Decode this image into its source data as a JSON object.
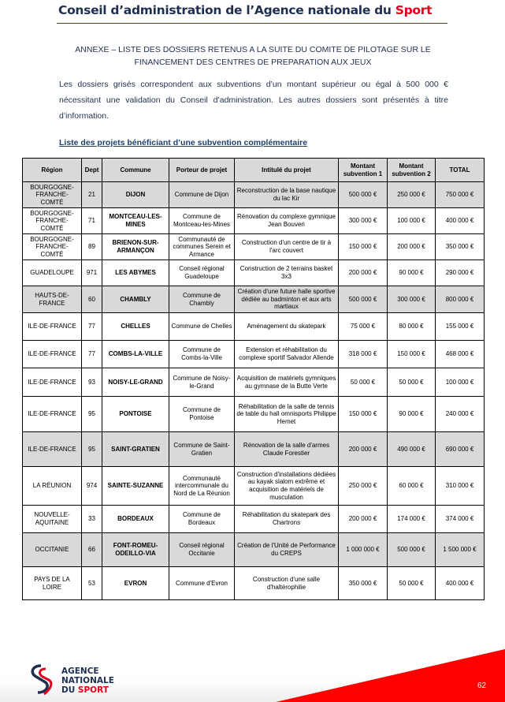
{
  "header": {
    "title_prefix": "Conseil d’administration de l’Agence nationale du ",
    "title_highlight": "Sport"
  },
  "annex_title": "ANNEXE – LISTE DES DOSSIERS RETENUS A LA SUITE DU COMITE DE PILOTAGE SUR LE FINANCEMENT DES CENTRES DE PREPARATION AUX JEUX",
  "intro": "Les dossiers grisés correspondent aux subventions d’un montant supérieur ou égal à 500 000 € nécessitant une validation du Conseil d’administration. Les autres dossiers sont présentés à titre d’information.",
  "section_title": "Liste des projets bénéficiant d’une subvention complémentaire",
  "table": {
    "columns": [
      "Région",
      "Dept",
      "Commune",
      "Porteur de projet",
      "Intitulé du projet",
      "Montant subvention 1",
      "Montant subvention 2",
      "TOTAL"
    ],
    "rows": [
      {
        "region": "BOURGOGNE-FRANCHE-COMTÉ",
        "dept": "21",
        "commune": "DIJON",
        "porteur": "Commune de Dijon",
        "intitule": "Reconstruction de la base nautique du lac Kir",
        "m1": "500 000 €",
        "m2": "250 000 €",
        "total": "750 000 €",
        "grey": true
      },
      {
        "region": "BOURGOGNE-FRANCHE-COMTÉ",
        "dept": "71",
        "commune": "MONTCEAU-LES-MINES",
        "porteur": "Commune de Montceau-les-Mines",
        "intitule": "Rénovation du complexe gymnique Jean Bouveri",
        "m1": "300 000 €",
        "m2": "100 000 €",
        "total": "400 000 €",
        "grey": false
      },
      {
        "region": "BOURGOGNE-FRANCHE-COMTÉ",
        "dept": "89",
        "commune": "BRIENON-SUR-ARMANÇON",
        "porteur": "Communauté de communes Serein et Armance",
        "intitule": "Construction d'un centre de tir à l'arc couvert",
        "m1": "150 000 €",
        "m2": "200 000 €",
        "total": "350 000 €",
        "grey": false
      },
      {
        "region": "GUADELOUPE",
        "dept": "971",
        "commune": "LES ABYMES",
        "porteur": "Conseil régional Guadeloupe",
        "intitule": "Construction de 2 terrains basket 3x3",
        "m1": "200 000 €",
        "m2": "90 000 €",
        "total": "290 000 €",
        "grey": false
      },
      {
        "region": "HAUTS-DE-FRANCE",
        "dept": "60",
        "commune": "CHAMBLY",
        "porteur": "Commune de Chambly",
        "intitule": "Création d'une future halle sportive dédiée au badminton et aux arts martiaux",
        "m1": "500 000 €",
        "m2": "300 000 €",
        "total": "800 000 €",
        "grey": true
      },
      {
        "region": "ILE-DE-FRANCE",
        "dept": "77",
        "commune": "CHELLES",
        "porteur": "Commune de Chelles",
        "intitule": "Aménagement du skatepark",
        "m1": "75 000 €",
        "m2": "80 000 €",
        "total": "155 000 €",
        "grey": false
      },
      {
        "region": "ILE-DE-FRANCE",
        "dept": "77",
        "commune": "COMBS-LA-VILLE",
        "porteur": "Commune de Combs-la-Ville",
        "intitule": "Extension et réhabilitation du complexe sportif Salvador Allende",
        "m1": "318 000 €",
        "m2": "150 000 €",
        "total": "468 000 €",
        "grey": false
      },
      {
        "region": "ILE-DE-FRANCE",
        "dept": "93",
        "commune": "NOISY-LE-GRAND",
        "porteur": "Commune de Noisy-le-Grand",
        "intitule": "Acquisition de matériels gymniques au gymnase de la Butte Verte",
        "m1": "50 000 €",
        "m2": "50 000 €",
        "total": "100 000 €",
        "grey": false
      },
      {
        "region": "ILE-DE-FRANCE",
        "dept": "95",
        "commune": "PONTOISE",
        "porteur": "Commune de Pontoise",
        "intitule": "Réhabilitation de la salle de tennis de table du hall omnisports Philippe Hemet",
        "m1": "150 000 €",
        "m2": "90 000 €",
        "total": "240 000 €",
        "grey": false
      },
      {
        "region": "ILE-DE-FRANCE",
        "dept": "95",
        "commune": "SAINT-GRATIEN",
        "porteur": "Commune de Saint-Gratien",
        "intitule": "Rénovation de la salle d'armes Claude Forestier",
        "m1": "200 000 €",
        "m2": "490 000 €",
        "total": "690 000 €",
        "grey": true
      },
      {
        "region": "LA RÉUNION",
        "dept": "974",
        "commune": "SAINTE-SUZANNE",
        "porteur": "Communauté intercommunale du Nord de La Réunion",
        "intitule": "Construction d'installations dédiées au kayak slalom extrême et acquisition de matériels de musculation",
        "m1": "250 000 €",
        "m2": "60 000 €",
        "total": "310 000 €",
        "grey": false
      },
      {
        "region": "NOUVELLE-AQUITAINE",
        "dept": "33",
        "commune": "BORDEAUX",
        "porteur": "Commune de Bordeaux",
        "intitule": "Réhabilitation du skatepark des Chartrons",
        "m1": "200 000 €",
        "m2": "174 000 €",
        "total": "374 000 €",
        "grey": false
      },
      {
        "region": "OCCITANIE",
        "dept": "66",
        "commune": "FONT-ROMEU-ODEILLO-VIA",
        "porteur": "Conseil régional Occitanie",
        "intitule": "Création de l'Unité de Performance du CREPS",
        "m1": "1 000 000 €",
        "m2": "500 000 €",
        "total": "1 500 000 €",
        "grey": true
      },
      {
        "region": "PAYS DE LA LOIRE",
        "dept": "53",
        "commune": "EVRON",
        "porteur": "Commune d'Evron",
        "intitule": "Construction d'une salle d'haltérophilie",
        "m1": "350 000 €",
        "m2": "50 000 €",
        "total": "400 000 €",
        "grey": false
      }
    ]
  },
  "footer": {
    "logo_lines": [
      "AGENCE",
      "NATIONALE",
      "DU "
    ],
    "logo_highlight": "SPORT",
    "page_number": "62"
  },
  "colors": {
    "brand_red": "#e3001b",
    "navy": "#1f2f4f",
    "grey_row": "#d9d9d9"
  }
}
